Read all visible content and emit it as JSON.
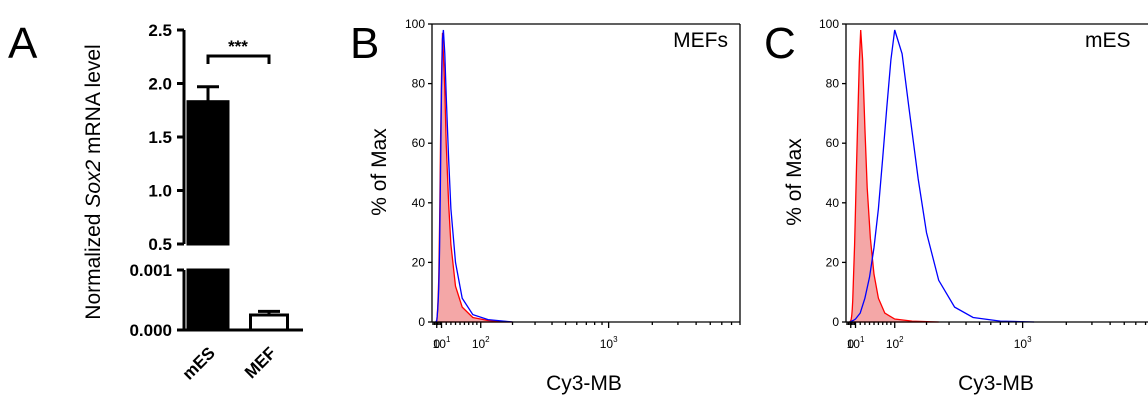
{
  "panels": {
    "a": {
      "letter": "A"
    },
    "b": {
      "letter": "B",
      "sample_label": "MEFs"
    },
    "c": {
      "letter": "C",
      "sample_label": "mES"
    }
  },
  "chart_data": [
    {
      "type": "bar",
      "panel": "A",
      "categories": [
        "mES",
        "MEF"
      ],
      "ylabel_prefix": "Normalized ",
      "ylabel_italic": "Sox2",
      "ylabel_suffix": " mRNA level",
      "ylabel": "Normalized Sox2 mRNA level",
      "axis_break": true,
      "y_ticks_upper": [
        "0.5",
        "1.0",
        "1.5",
        "2.0",
        "2.5"
      ],
      "y_ticks_lower": [
        "0.000",
        "0.001"
      ],
      "series": [
        {
          "values": [
            1.83,
            0.00025
          ],
          "errors": [
            0.14,
            6e-05
          ],
          "fills": [
            "#000000",
            "#ffffff"
          ]
        }
      ],
      "significance": "***",
      "ylim_upper": [
        0.5,
        2.5
      ],
      "ylim_lower": [
        0,
        0.001
      ]
    },
    {
      "type": "area",
      "panel": "B",
      "xlabel": "Cy3-MB",
      "ylabel": "% of Max",
      "x_scale": "biexponential",
      "x_ticks": [
        {
          "value": 0,
          "base": "0",
          "exp": ""
        },
        {
          "value": 10,
          "base": "10",
          "exp": "1"
        },
        {
          "value": 100,
          "base": "10",
          "exp": "2"
        },
        {
          "value": 1000,
          "base": "10",
          "exp": "3"
        }
      ],
      "y_ticks": [
        "0",
        "20",
        "40",
        "60",
        "80",
        "100"
      ],
      "ylim": [
        0,
        100
      ],
      "series": [
        {
          "style": "filled",
          "color": "#ff0000",
          "fill": "#f4a7a7",
          "x": [
            -2,
            0,
            1,
            2,
            3,
            4,
            5,
            6,
            7,
            8,
            10,
            12,
            14,
            17,
            20,
            25,
            30,
            40,
            55,
            80,
            120,
            200
          ],
          "y": [
            0,
            0.5,
            2,
            5,
            9,
            14,
            22,
            33,
            47,
            62,
            82,
            97,
            90,
            78,
            60,
            40,
            26,
            12,
            5,
            1.5,
            0.5,
            0
          ]
        },
        {
          "style": "line",
          "color": "#0000ff",
          "x": [
            -2,
            0,
            1,
            2,
            3,
            4,
            5,
            6,
            7,
            8,
            10,
            12,
            14,
            17,
            20,
            25,
            30,
            40,
            55,
            80,
            120,
            200
          ],
          "y": [
            0,
            0.5,
            2,
            4,
            7,
            11,
            16,
            25,
            38,
            52,
            78,
            95,
            98,
            90,
            76,
            55,
            38,
            20,
            8,
            2.5,
            0.8,
            0
          ]
        }
      ]
    },
    {
      "type": "area",
      "panel": "C",
      "xlabel": "Cy3-MB",
      "ylabel": "% of Max",
      "x_scale": "biexponential",
      "x_ticks": [
        {
          "value": 0,
          "base": "0",
          "exp": ""
        },
        {
          "value": 10,
          "base": "10",
          "exp": "1"
        },
        {
          "value": 100,
          "base": "10",
          "exp": "2"
        },
        {
          "value": 1000,
          "base": "10",
          "exp": "3"
        }
      ],
      "y_ticks": [
        "0",
        "20",
        "40",
        "60",
        "80",
        "100"
      ],
      "ylim": [
        0,
        100
      ],
      "series": [
        {
          "style": "filled",
          "color": "#ff0000",
          "fill": "#f4a7a7",
          "x": [
            -2,
            0,
            1,
            2,
            3,
            4,
            5,
            6,
            8,
            10,
            12,
            15,
            18,
            21,
            25,
            30,
            35,
            42,
            50,
            60,
            75,
            100,
            150,
            250
          ],
          "y": [
            0,
            0.5,
            1,
            2,
            4,
            7,
            11,
            16,
            26,
            38,
            52,
            70,
            87,
            98,
            88,
            65,
            45,
            28,
            16,
            8,
            3,
            1,
            0.3,
            0
          ]
        },
        {
          "style": "line",
          "color": "#0000ff",
          "x": [
            -2,
            5,
            10,
            15,
            20,
            30,
            40,
            50,
            60,
            70,
            80,
            90,
            100,
            120,
            140,
            170,
            200,
            250,
            330,
            450,
            700,
            1200
          ],
          "y": [
            0,
            0.5,
            1,
            2,
            3,
            8,
            15,
            25,
            38,
            55,
            72,
            88,
            98,
            90,
            72,
            48,
            30,
            14,
            5,
            1.5,
            0.3,
            0
          ]
        }
      ]
    }
  ]
}
